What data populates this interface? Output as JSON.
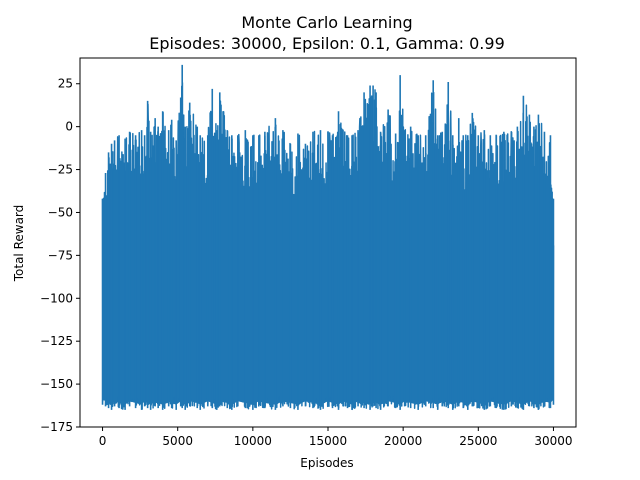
{
  "chart_data": {
    "type": "line",
    "title": "Monte Carlo Learning",
    "subtitle": "Episodes: 30000, Epsilon: 0.1, Gamma: 0.99",
    "xlabel": "Episodes",
    "ylabel": "Total Reward",
    "xlim": [
      -1500,
      31500
    ],
    "ylim": [
      -175,
      40
    ],
    "x_ticks": [
      0,
      5000,
      10000,
      15000,
      20000,
      25000,
      30000
    ],
    "x_tick_labels": [
      "0",
      "5000",
      "10000",
      "15000",
      "20000",
      "25000",
      "30000"
    ],
    "y_ticks": [
      25,
      0,
      -25,
      -50,
      -75,
      -100,
      -125,
      -150,
      -175
    ],
    "y_tick_labels": [
      "25",
      "0",
      "−25",
      "−50",
      "−75",
      "−100",
      "−125",
      "−150",
      "−175"
    ],
    "grid": false,
    "line_color": "#1f77b4",
    "series": [
      {
        "x": [
          0,
          200,
          400,
          600,
          800,
          1100,
          1500,
          1800,
          2200,
          2600,
          2800,
          3000,
          3200,
          3500,
          3700,
          4000,
          4400,
          4600,
          4900,
          5200,
          5300,
          5500,
          5800,
          6300,
          6500,
          7000,
          7300,
          7600,
          7800,
          8300,
          8600,
          9000,
          9500,
          10000,
          10400,
          10800,
          11500,
          12000,
          12500,
          13000,
          13500,
          14000,
          14500,
          15000,
          15300,
          15700,
          16000,
          16300,
          16600,
          17000,
          17400,
          17800,
          18000,
          18200,
          18500,
          19000,
          19500,
          19800,
          20100,
          20500,
          21000,
          21500,
          22000,
          22300,
          22600,
          23000,
          23300,
          23700,
          24000,
          24300,
          24600,
          25000,
          25400,
          25800,
          26200,
          26700,
          27200,
          27600,
          28000,
          28400,
          28700,
          29000,
          29400,
          29800,
          30000
        ],
        "y_max": [
          -42,
          -27,
          -15,
          -10,
          -8,
          -5,
          -7,
          -3,
          -5,
          -2,
          -5,
          15,
          -3,
          5,
          0,
          9,
          -2,
          4,
          -8,
          17,
          36,
          0,
          14,
          0,
          -5,
          -5,
          22,
          -2,
          20,
          -2,
          -5,
          -5,
          -2,
          -5,
          -5,
          -3,
          5,
          -2,
          -10,
          -4,
          -10,
          -3,
          -2,
          -3,
          -5,
          9,
          -2,
          -5,
          -5,
          -2,
          20,
          24,
          24,
          20,
          -3,
          10,
          -4,
          30,
          -2,
          0,
          -5,
          -5,
          27,
          -5,
          -3,
          26,
          -5,
          5,
          -5,
          -5,
          8,
          -5,
          -2,
          -5,
          -5,
          -3,
          -3,
          0,
          18,
          7,
          0,
          7,
          -3,
          -5,
          -42
        ],
        "y_min": [
          -162,
          -163,
          -164,
          -165,
          -163,
          -164,
          -165,
          -163,
          -164,
          -165,
          -163,
          -164,
          -165,
          -163,
          -164,
          -165,
          -163,
          -164,
          -165,
          -163,
          -164,
          -165,
          -163,
          -164,
          -165,
          -163,
          -164,
          -165,
          -163,
          -164,
          -165,
          -163,
          -164,
          -165,
          -163,
          -164,
          -165,
          -163,
          -164,
          -165,
          -163,
          -164,
          -165,
          -163,
          -164,
          -165,
          -163,
          -164,
          -165,
          -163,
          -164,
          -165,
          -163,
          -164,
          -165,
          -163,
          -164,
          -165,
          -163,
          -164,
          -165,
          -163,
          -164,
          -165,
          -163,
          -164,
          -165,
          -163,
          -164,
          -165,
          -163,
          -164,
          -165,
          -163,
          -164,
          -165,
          -163,
          -164,
          -165,
          -163,
          -164,
          -165,
          -163,
          -164,
          -162
        ]
      }
    ]
  }
}
